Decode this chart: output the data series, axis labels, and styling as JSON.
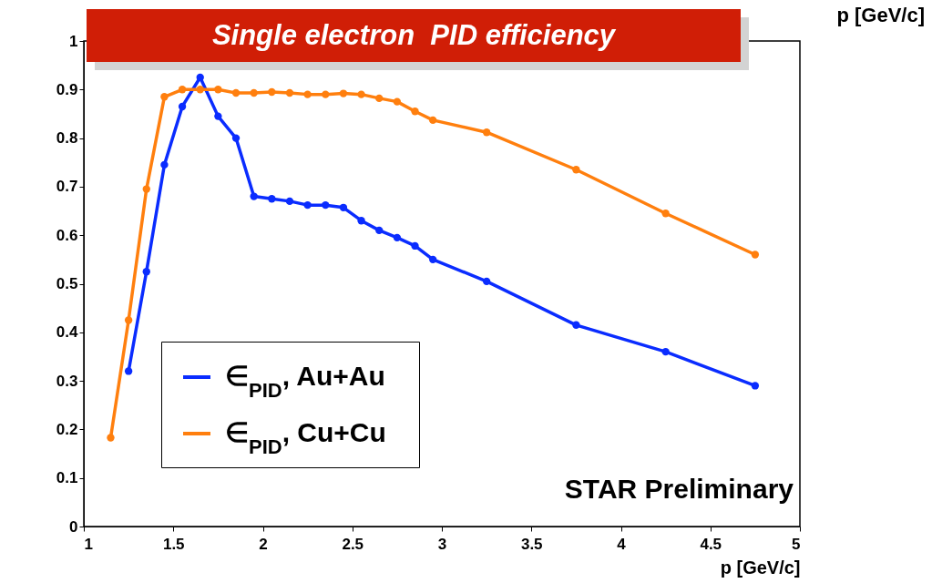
{
  "chart_data": {
    "type": "line",
    "title": "Single electron  PID efficiency",
    "xlabel": "p [GeV/c]",
    "annotations": [
      "STAR Preliminary",
      "p [GeV/c]"
    ],
    "xlim": [
      1,
      5
    ],
    "xticks": [
      1,
      1.5,
      2,
      2.5,
      3,
      3.5,
      4,
      4.5,
      5
    ],
    "ylim": [
      0,
      1
    ],
    "yticks": [
      0,
      0.1,
      0.2,
      0.3,
      0.4,
      0.5,
      0.6,
      0.7,
      0.8,
      0.9,
      1
    ],
    "grid": false,
    "legend": "bottom left",
    "marker": "circle",
    "line_style": "solid",
    "series": [
      {
        "name": "∈$_{PID}$, Au+Au",
        "color": "#0a2cff",
        "x": [
          1.25,
          1.35,
          1.45,
          1.55,
          1.65,
          1.75,
          1.85,
          1.95,
          2.05,
          2.15,
          2.25,
          2.35,
          2.45,
          2.55,
          2.65,
          2.75,
          2.85,
          2.95,
          3.25,
          3.75,
          4.25,
          4.75
        ],
        "values": [
          0.32,
          0.525,
          0.745,
          0.865,
          0.925,
          0.845,
          0.8,
          0.68,
          0.675,
          0.67,
          0.662,
          0.662,
          0.657,
          0.63,
          0.61,
          0.595,
          0.578,
          0.55,
          0.505,
          0.415,
          0.36,
          0.29
        ]
      },
      {
        "name": "∈$_{PID}$, Cu+Cu",
        "color": "#ff7f0e",
        "x": [
          1.15,
          1.25,
          1.35,
          1.45,
          1.55,
          1.65,
          1.75,
          1.85,
          1.95,
          2.05,
          2.15,
          2.25,
          2.35,
          2.45,
          2.55,
          2.65,
          2.75,
          2.85,
          2.95,
          3.25,
          3.75,
          4.25,
          4.75
        ],
        "values": [
          0.183,
          0.425,
          0.695,
          0.885,
          0.9,
          0.9,
          0.9,
          0.893,
          0.893,
          0.895,
          0.893,
          0.89,
          0.89,
          0.892,
          0.89,
          0.882,
          0.875,
          0.855,
          0.837,
          0.812,
          0.735,
          0.645,
          0.56
        ]
      }
    ]
  }
}
